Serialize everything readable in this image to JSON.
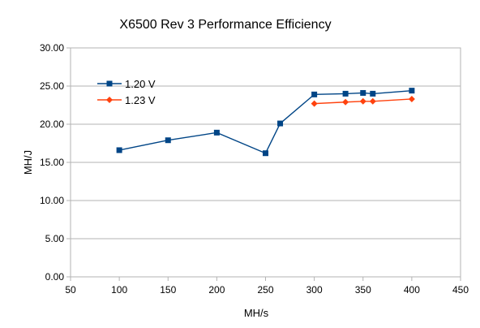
{
  "chart_data": {
    "type": "scatter",
    "title": "X6500 Rev 3 Performance Efficiency",
    "xlabel": "MH/s",
    "ylabel": "MH/J",
    "xlim": [
      50,
      450
    ],
    "ylim": [
      0,
      30
    ],
    "xticks": [
      50,
      100,
      150,
      200,
      250,
      300,
      350,
      400,
      450
    ],
    "yticks": [
      0,
      5,
      10,
      15,
      20,
      25,
      30
    ],
    "xtick_labels": [
      "50",
      "100",
      "150",
      "200",
      "250",
      "300",
      "350",
      "400",
      "450"
    ],
    "ytick_labels": [
      "0.00",
      "5.00",
      "10.00",
      "15.00",
      "20.00",
      "25.00",
      "30.00"
    ],
    "grid": "horizontal",
    "legend_position": "top-left",
    "series": [
      {
        "name": "1.20 V",
        "color": "#004586",
        "marker": "square",
        "points": [
          [
            100,
            16.6
          ],
          [
            150,
            17.9
          ],
          [
            200,
            18.9
          ],
          [
            250,
            16.2
          ],
          [
            265,
            20.1
          ],
          [
            300,
            23.9
          ],
          [
            332,
            24.0
          ],
          [
            350,
            24.1
          ],
          [
            360,
            24.0
          ],
          [
            400,
            24.4
          ]
        ]
      },
      {
        "name": "1.23 V",
        "color": "#ff420e",
        "marker": "diamond",
        "points": [
          [
            300,
            22.7
          ],
          [
            332,
            22.9
          ],
          [
            350,
            23.0
          ],
          [
            360,
            23.0
          ],
          [
            400,
            23.3
          ]
        ]
      }
    ]
  }
}
